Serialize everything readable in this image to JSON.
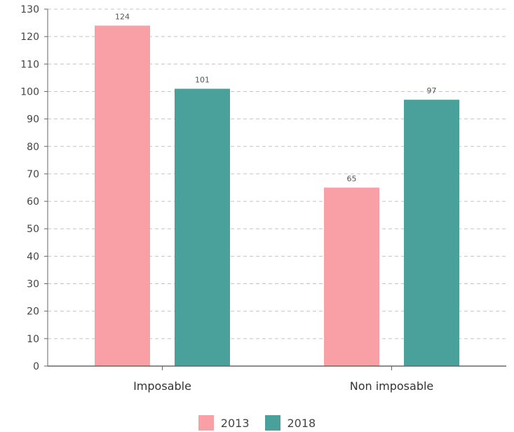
{
  "chart_data": {
    "type": "bar",
    "categories": [
      "Imposable",
      "Non imposable"
    ],
    "series": [
      {
        "name": "2013",
        "values": [
          124,
          65
        ],
        "color": "#f9a0a6"
      },
      {
        "name": "2018",
        "values": [
          101,
          97
        ],
        "color": "#4aa19b"
      }
    ],
    "ylim": [
      0,
      130
    ],
    "yticks": [
      0,
      10,
      20,
      30,
      40,
      50,
      60,
      70,
      80,
      90,
      100,
      110,
      120,
      130
    ],
    "grid": true,
    "legend": "bottom-center",
    "title": "",
    "xlabel": "",
    "ylabel": ""
  }
}
